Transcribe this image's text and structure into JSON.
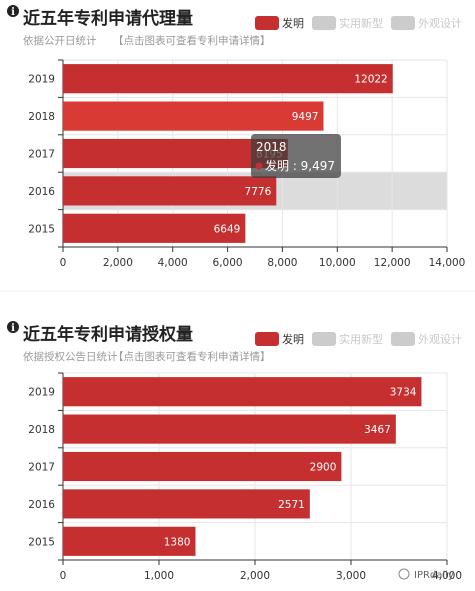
{
  "colors": {
    "invention": "#c62f2f",
    "hover": "#d93a34",
    "disabled": "#cccccc",
    "gridline": "#e6e6e6",
    "axis": "#333333"
  },
  "chart_data": [
    {
      "type": "bar",
      "orientation": "horizontal",
      "title": "近五年专利申请代理量",
      "subtitle": "依据公开日统计",
      "subtitle_link": "【点击图表可查看专利申请详情】",
      "legend": [
        {
          "name": "发明",
          "active": true
        },
        {
          "name": "实用新型",
          "active": false
        },
        {
          "name": "外观设计",
          "active": false
        }
      ],
      "categories": [
        "2019",
        "2018",
        "2017",
        "2016",
        "2015"
      ],
      "series": [
        {
          "name": "发明",
          "values": [
            12022,
            9497,
            8195,
            7776,
            6649
          ]
        }
      ],
      "x_ticks": [
        "0",
        "2,000",
        "4,000",
        "6,000",
        "8,000",
        "10,000",
        "12,000",
        "14,000"
      ],
      "xlim": [
        0,
        14000
      ],
      "hovered_category": "2016",
      "tooltip": {
        "title": "2018",
        "text": "发明 : 9,497"
      }
    },
    {
      "type": "bar",
      "orientation": "horizontal",
      "title": "近五年专利申请授权量",
      "subtitle": "依据授权公告日统计",
      "subtitle_link": "【点击图表可查看专利申请详情】",
      "legend": [
        {
          "name": "发明",
          "active": true
        },
        {
          "name": "实用新型",
          "active": false
        },
        {
          "name": "外观设计",
          "active": false
        }
      ],
      "categories": [
        "2019",
        "2018",
        "2017",
        "2016",
        "2015"
      ],
      "series": [
        {
          "name": "发明",
          "values": [
            3734,
            3467,
            2900,
            2571,
            1380
          ]
        }
      ],
      "x_ticks": [
        "0",
        "1,000",
        "2,000",
        "3,000",
        "4,000"
      ],
      "xlim": [
        0,
        4000
      ]
    }
  ],
  "watermark": {
    "text": "IPRdaily"
  }
}
